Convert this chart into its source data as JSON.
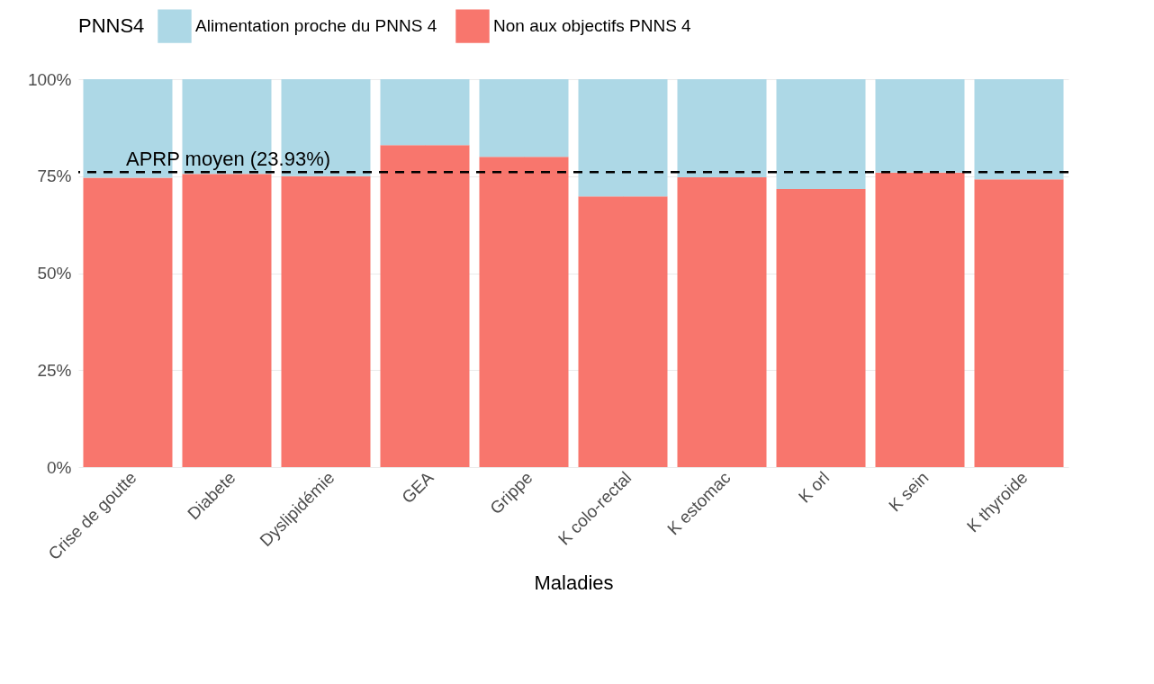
{
  "chart_data": {
    "type": "bar",
    "stacked": true,
    "xlabel": "Maladies",
    "legend_title": "PNNS4",
    "legend": "top",
    "grid": true,
    "categories": [
      "Crise de goutte",
      "Diabete",
      "Dyslipidémie",
      "GEA",
      "Grippe",
      "K colo-rectal",
      "K estomac",
      "K orl",
      "K sein",
      "K thyroide"
    ],
    "series": [
      {
        "name": "Non aux objectifs PNNS 4",
        "color": "#f8766d",
        "values": [
          74.6,
          75.6,
          75.0,
          83.0,
          80.0,
          69.8,
          74.7,
          71.7,
          75.9,
          74.2
        ]
      },
      {
        "name": "Alimentation proche du PNNS 4",
        "color": "#add8e6",
        "values": [
          25.4,
          24.4,
          25.0,
          17.0,
          20.0,
          30.2,
          25.3,
          28.3,
          24.1,
          25.8
        ]
      }
    ],
    "ylim": [
      0,
      100
    ],
    "yticks": [
      {
        "value": 0,
        "label": "0%"
      },
      {
        "value": 25,
        "label": "25%"
      },
      {
        "value": 50,
        "label": "50%"
      },
      {
        "value": 75,
        "label": "75%"
      },
      {
        "value": 100,
        "label": "100%"
      }
    ],
    "ref_lines": [
      {
        "axis": "y",
        "value": 76.07,
        "label": "APRP moyen (23.93%)",
        "color": "#000000",
        "line_style": "dashed"
      }
    ]
  }
}
